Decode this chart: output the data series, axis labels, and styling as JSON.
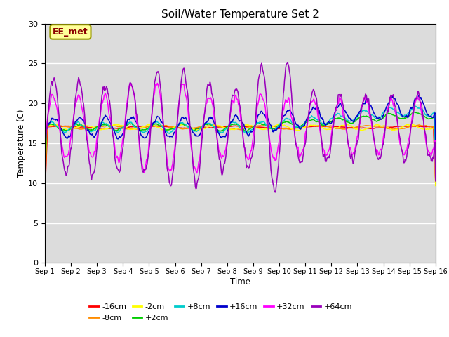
{
  "title": "Soil/Water Temperature Set 2",
  "xlabel": "Time",
  "ylabel": "Temperature (C)",
  "xlim": [
    0,
    15
  ],
  "ylim": [
    0,
    30
  ],
  "yticks": [
    0,
    5,
    10,
    15,
    20,
    25,
    30
  ],
  "xtick_labels": [
    "Sep 1",
    "Sep 2",
    "Sep 3",
    "Sep 4",
    "Sep 5",
    "Sep 6",
    "Sep 7",
    "Sep 8",
    "Sep 9",
    "Sep 10",
    "Sep 11",
    "Sep 12",
    "Sep 13",
    "Sep 14",
    "Sep 15",
    "Sep 16"
  ],
  "background_color": "#dcdcdc",
  "fig_bg": "#ffffff",
  "legend_label": "EE_met",
  "colors": {
    "-16cm": "#ff0000",
    "-8cm": "#ff8c00",
    "-2cm": "#ffff00",
    "+2cm": "#00cc00",
    "+8cm": "#00cccc",
    "+16cm": "#0000cc",
    "+32cm": "#ff00ff",
    "+64cm": "#9900bb"
  },
  "order": [
    "-16cm",
    "-8cm",
    "-2cm",
    "+2cm",
    "+8cm",
    "+16cm",
    "+32cm",
    "+64cm"
  ]
}
